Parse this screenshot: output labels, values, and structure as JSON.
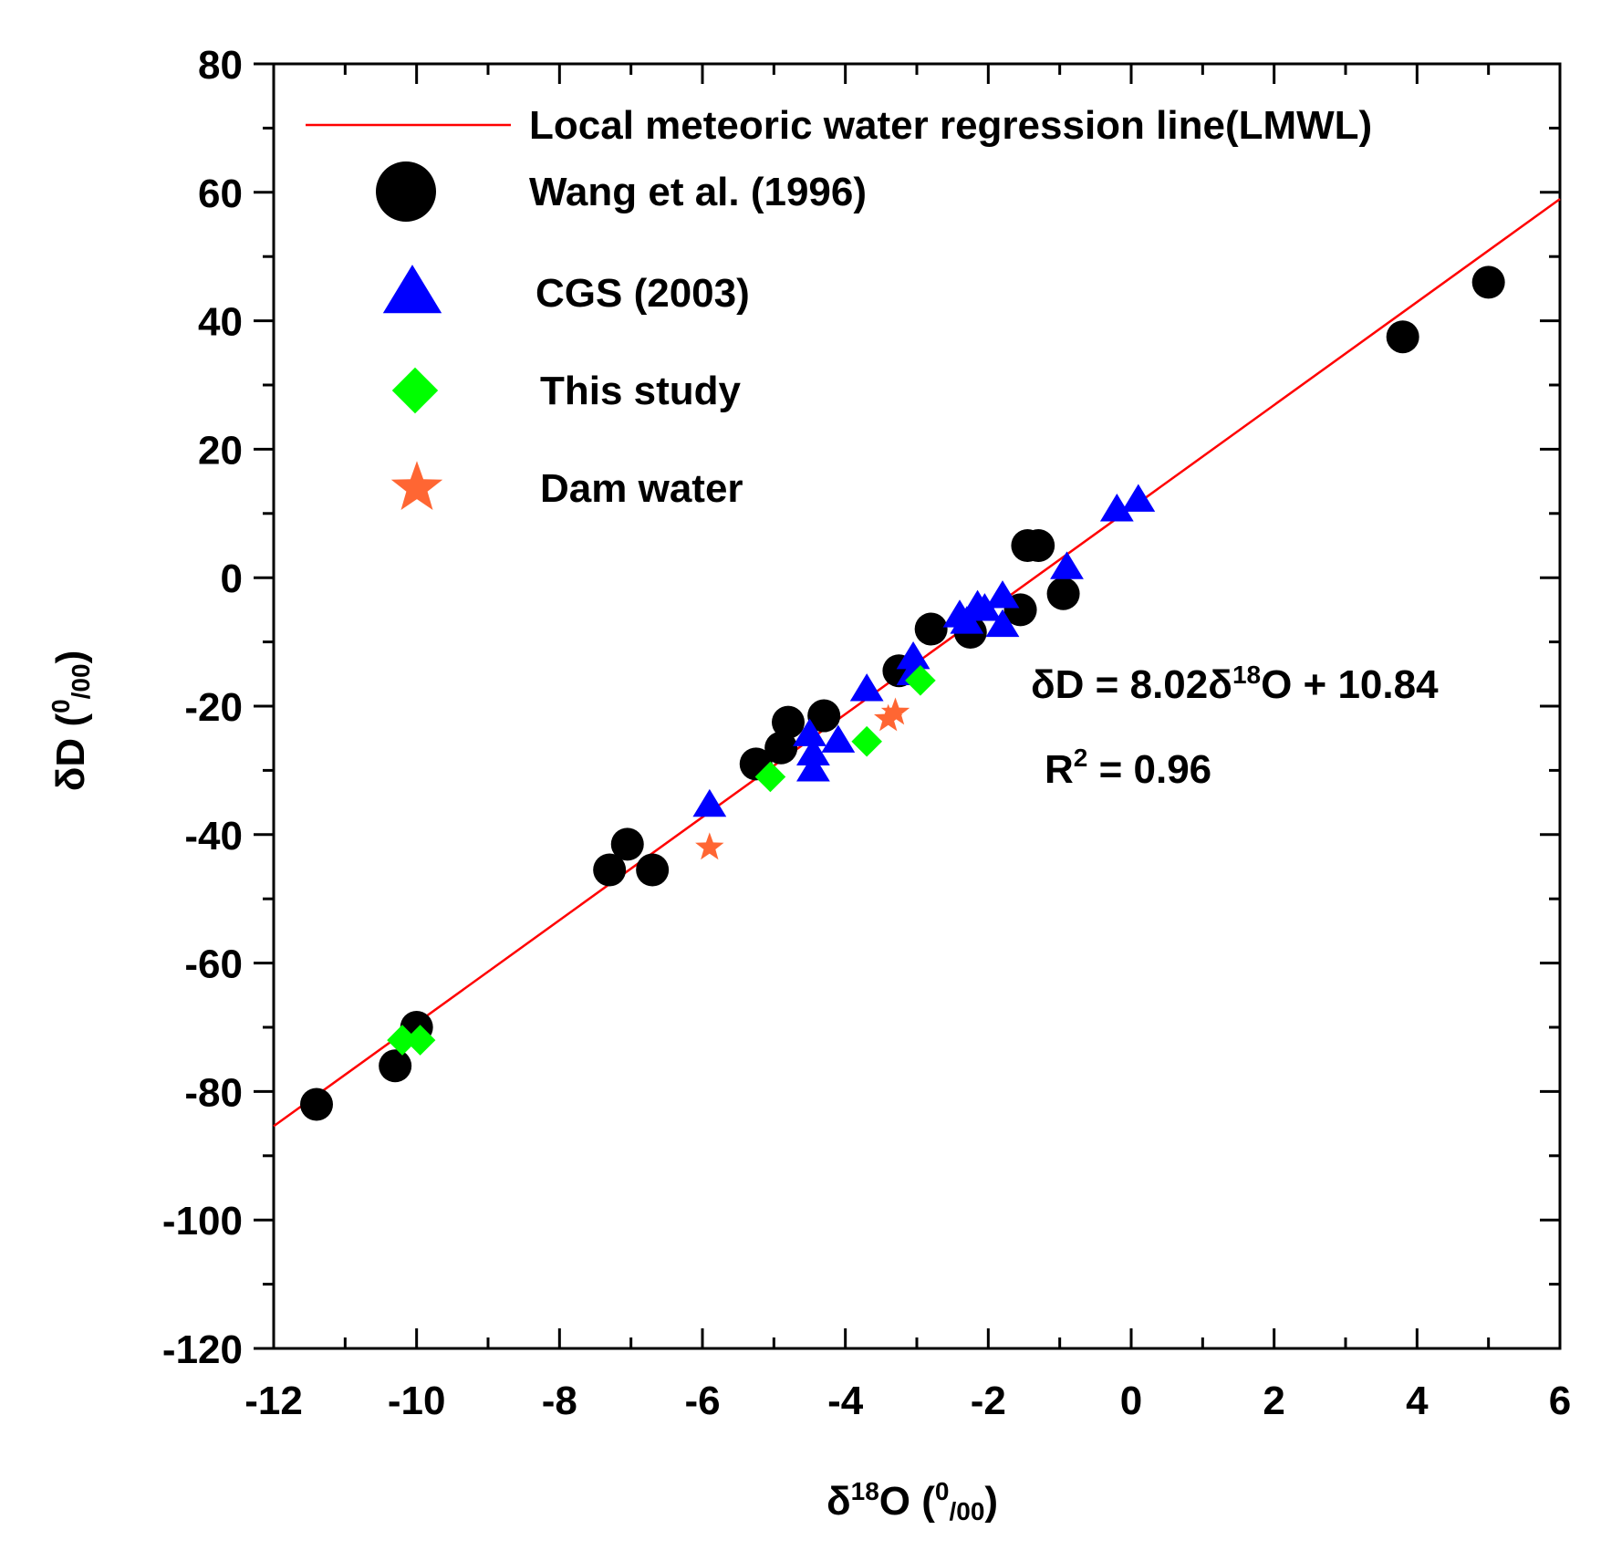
{
  "chart_data": {
    "type": "scatter",
    "xlabel": {
      "main": "δ",
      "sup": "18",
      "rest": "O (",
      "unit_sup": "0",
      "unit_sub": "/00",
      "close": ")"
    },
    "ylabel": {
      "main": "δD (",
      "unit_sup": "0",
      "unit_sub": "/00",
      "close": ")"
    },
    "xlim": [
      -12,
      6
    ],
    "ylim": [
      -120,
      80
    ],
    "xticks": [
      -12,
      -10,
      -8,
      -6,
      -4,
      -2,
      0,
      2,
      4,
      6
    ],
    "yticks": [
      80,
      60,
      40,
      20,
      0,
      -20,
      -40,
      -60,
      -80,
      -100,
      -120
    ],
    "grid": false,
    "legend_position": "top-left",
    "legend": [
      {
        "label": "Local meteoric water regression line(LMWL)",
        "marker": "line",
        "color": "#ff0000"
      },
      {
        "label": "Wang et al. (1996)",
        "marker": "circle",
        "color": "#000000"
      },
      {
        "label": "CGS (2003)",
        "marker": "triangle",
        "color": "#0000ff"
      },
      {
        "label": "This study",
        "marker": "diamond",
        "color": "#00ff00"
      },
      {
        "label": "Dam water",
        "marker": "star",
        "color": "#ff6633"
      }
    ],
    "regression": {
      "slope": 8.02,
      "intercept": 10.84,
      "x_range": [
        -12,
        6
      ]
    },
    "equation": {
      "prefix": "δD = 8.02δ",
      "sup": "18",
      "suffix": "O + 10.84"
    },
    "r2": {
      "prefix": "R",
      "sup": "2",
      "suffix": " = 0.96"
    },
    "series": [
      {
        "name": "Wang et al. (1996)",
        "marker": "circle",
        "color": "#000000",
        "points": [
          [
            -11.4,
            -82
          ],
          [
            -10.3,
            -76
          ],
          [
            -10.0,
            -70
          ],
          [
            -7.3,
            -45.5
          ],
          [
            -7.05,
            -41.5
          ],
          [
            -6.7,
            -45.5
          ],
          [
            -5.25,
            -29
          ],
          [
            -4.9,
            -26.5
          ],
          [
            -4.8,
            -22.5
          ],
          [
            -4.3,
            -21.5
          ],
          [
            -3.25,
            -14.5
          ],
          [
            -2.8,
            -8
          ],
          [
            -2.25,
            -8.5
          ],
          [
            -1.55,
            -5
          ],
          [
            -1.45,
            5
          ],
          [
            -1.3,
            5
          ],
          [
            -0.95,
            -2.5
          ],
          [
            3.8,
            37.5
          ],
          [
            5.0,
            46
          ]
        ]
      },
      {
        "name": "CGS (2003)",
        "marker": "triangle",
        "color": "#0000ff",
        "points": [
          [
            -5.9,
            -35.5
          ],
          [
            -4.5,
            -24.5
          ],
          [
            -4.45,
            -27.5
          ],
          [
            -4.45,
            -30
          ],
          [
            -4.1,
            -25.5
          ],
          [
            -3.7,
            -17.5
          ],
          [
            -3.05,
            -12.5
          ],
          [
            -3.05,
            -15
          ],
          [
            -2.4,
            -6
          ],
          [
            -2.3,
            -7
          ],
          [
            -2.15,
            -4.5
          ],
          [
            -2.05,
            -5
          ],
          [
            -1.8,
            -3
          ],
          [
            -1.8,
            -7.5
          ],
          [
            -0.9,
            1.5
          ],
          [
            -0.2,
            10.5
          ],
          [
            0.1,
            12
          ]
        ]
      },
      {
        "name": "This study",
        "marker": "diamond",
        "color": "#00ff00",
        "points": [
          [
            -10.2,
            -72
          ],
          [
            -9.95,
            -72
          ],
          [
            -5.05,
            -31
          ],
          [
            -3.7,
            -25.5
          ],
          [
            -2.95,
            -16
          ]
        ]
      },
      {
        "name": "Dam water",
        "marker": "star",
        "color": "#ff6633",
        "points": [
          [
            -5.9,
            -42
          ],
          [
            -3.4,
            -22
          ],
          [
            -3.3,
            -21
          ]
        ]
      }
    ]
  }
}
